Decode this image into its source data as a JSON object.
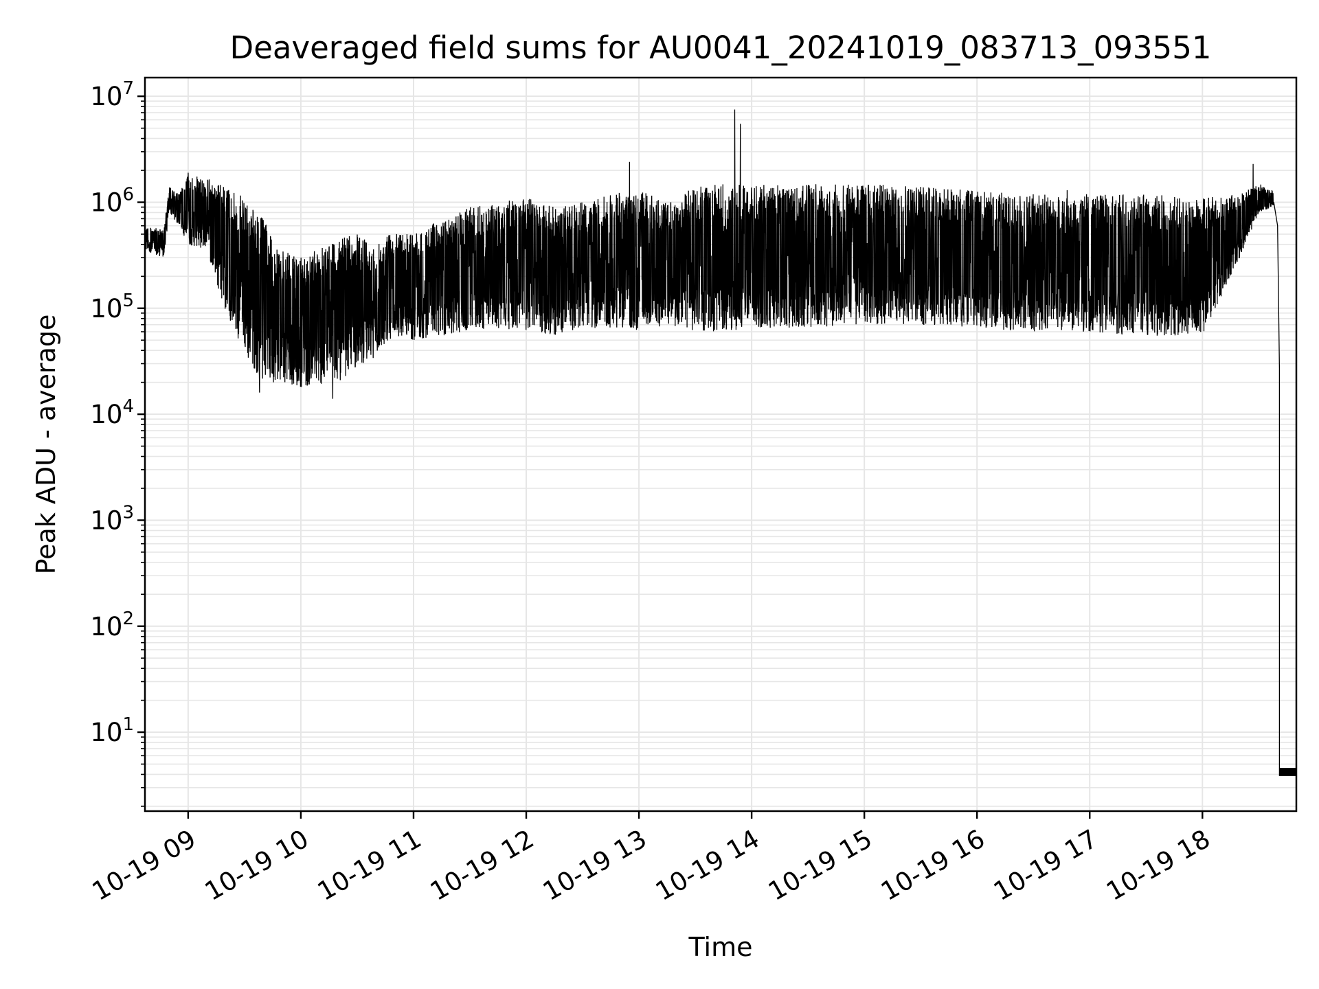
{
  "chart_data": {
    "type": "line",
    "title": "Deaveraged field sums for AU0041_20241019_083713_093551",
    "xlabel": "Time",
    "ylabel": "Peak ADU - average",
    "yscale": "log",
    "ylim": [
      1.8,
      15000000
    ],
    "xlim": [
      "2024-10-19 08:37",
      "2024-10-19 18:50"
    ],
    "grid": true,
    "line_color": "#000000",
    "grid_color": "#e6e6e6",
    "x_ticks": [
      {
        "t": "2024-10-19 09:00",
        "label": "10-19 09"
      },
      {
        "t": "2024-10-19 10:00",
        "label": "10-19 10"
      },
      {
        "t": "2024-10-19 11:00",
        "label": "10-19 11"
      },
      {
        "t": "2024-10-19 12:00",
        "label": "10-19 12"
      },
      {
        "t": "2024-10-19 13:00",
        "label": "10-19 13"
      },
      {
        "t": "2024-10-19 14:00",
        "label": "10-19 14"
      },
      {
        "t": "2024-10-19 15:00",
        "label": "10-19 15"
      },
      {
        "t": "2024-10-19 16:00",
        "label": "10-19 16"
      },
      {
        "t": "2024-10-19 17:00",
        "label": "10-19 17"
      },
      {
        "t": "2024-10-19 18:00",
        "label": "10-19 18"
      }
    ],
    "y_ticks": [
      {
        "value": 10,
        "base": "10",
        "exp": "1"
      },
      {
        "value": 100,
        "base": "10",
        "exp": "2"
      },
      {
        "value": 1000,
        "base": "10",
        "exp": "3"
      },
      {
        "value": 10000,
        "base": "10",
        "exp": "4"
      },
      {
        "value": 100000,
        "base": "10",
        "exp": "5"
      },
      {
        "value": 1000000,
        "base": "10",
        "exp": "6"
      },
      {
        "value": 10000000,
        "base": "10",
        "exp": "7"
      }
    ],
    "envelope": [
      {
        "t": "2024-10-19 08:37",
        "low": 350000,
        "high": 600000
      },
      {
        "t": "2024-10-19 08:47",
        "low": 300000,
        "high": 550000
      },
      {
        "t": "2024-10-19 08:50",
        "low": 800000,
        "high": 1400000
      },
      {
        "t": "2024-10-19 08:55",
        "low": 600000,
        "high": 1200000
      },
      {
        "t": "2024-10-19 09:00",
        "low": 400000,
        "high": 1800000
      },
      {
        "t": "2024-10-19 09:10",
        "low": 350000,
        "high": 1700000
      },
      {
        "t": "2024-10-19 09:20",
        "low": 90000,
        "high": 1400000
      },
      {
        "t": "2024-10-19 09:30",
        "low": 35000,
        "high": 1100000
      },
      {
        "t": "2024-10-19 09:40",
        "low": 20000,
        "high": 700000
      },
      {
        "t": "2024-10-19 09:50",
        "low": 20000,
        "high": 350000
      },
      {
        "t": "2024-10-19 10:00",
        "low": 18000,
        "high": 300000
      },
      {
        "t": "2024-10-19 10:10",
        "low": 19000,
        "high": 400000
      },
      {
        "t": "2024-10-19 10:20",
        "low": 20000,
        "high": 450000
      },
      {
        "t": "2024-10-19 10:30",
        "low": 28000,
        "high": 500000
      },
      {
        "t": "2024-10-19 10:40",
        "low": 35000,
        "high": 400000
      },
      {
        "t": "2024-10-19 10:50",
        "low": 55000,
        "high": 600000
      },
      {
        "t": "2024-10-19 11:00",
        "low": 50000,
        "high": 500000
      },
      {
        "t": "2024-10-19 11:15",
        "low": 55000,
        "high": 700000
      },
      {
        "t": "2024-10-19 11:30",
        "low": 60000,
        "high": 900000
      },
      {
        "t": "2024-10-19 11:45",
        "low": 65000,
        "high": 1000000
      },
      {
        "t": "2024-10-19 12:00",
        "low": 60000,
        "high": 1100000
      },
      {
        "t": "2024-10-19 12:15",
        "low": 55000,
        "high": 900000
      },
      {
        "t": "2024-10-19 12:30",
        "low": 65000,
        "high": 1000000
      },
      {
        "t": "2024-10-19 12:45",
        "low": 65000,
        "high": 1200000
      },
      {
        "t": "2024-10-19 13:00",
        "low": 60000,
        "high": 1300000
      },
      {
        "t": "2024-10-19 13:15",
        "low": 70000,
        "high": 1000000
      },
      {
        "t": "2024-10-19 13:30",
        "low": 60000,
        "high": 1400000
      },
      {
        "t": "2024-10-19 13:45",
        "low": 60000,
        "high": 1500000
      },
      {
        "t": "2024-10-19 14:00",
        "low": 65000,
        "high": 1500000
      },
      {
        "t": "2024-10-19 14:30",
        "low": 65000,
        "high": 1500000
      },
      {
        "t": "2024-10-19 15:00",
        "low": 70000,
        "high": 1500000
      },
      {
        "t": "2024-10-19 15:30",
        "low": 70000,
        "high": 1400000
      },
      {
        "t": "2024-10-19 16:00",
        "low": 65000,
        "high": 1300000
      },
      {
        "t": "2024-10-19 16:30",
        "low": 60000,
        "high": 1200000
      },
      {
        "t": "2024-10-19 17:00",
        "low": 60000,
        "high": 1200000
      },
      {
        "t": "2024-10-19 17:30",
        "low": 55000,
        "high": 1200000
      },
      {
        "t": "2024-10-19 18:00",
        "low": 55000,
        "high": 1100000
      },
      {
        "t": "2024-10-19 18:20",
        "low": 300000,
        "high": 1200000
      },
      {
        "t": "2024-10-19 18:30",
        "low": 800000,
        "high": 1500000
      },
      {
        "t": "2024-10-19 18:38",
        "low": 900000,
        "high": 1300000
      }
    ],
    "spikes": [
      {
        "t": "2024-10-19 09:00",
        "value": 1900000
      },
      {
        "t": "2024-10-19 12:55",
        "value": 2400000
      },
      {
        "t": "2024-10-19 13:51",
        "value": 7500000
      },
      {
        "t": "2024-10-19 13:54",
        "value": 5500000
      },
      {
        "t": "2024-10-19 18:27",
        "value": 2300000
      },
      {
        "t": "2024-10-19 10:17",
        "value": 14000
      },
      {
        "t": "2024-10-19 09:38",
        "value": 16000
      },
      {
        "t": "2024-10-19 16:48",
        "value": 1300000
      }
    ],
    "dropoff": [
      {
        "t": "2024-10-19 18:38",
        "value": 1000000
      },
      {
        "t": "2024-10-19 18:40",
        "value": 600000
      },
      {
        "t": "2024-10-19 18:41",
        "value": 27000
      },
      {
        "t": "2024-10-19 18:41",
        "value": 4.5
      },
      {
        "t": "2024-10-19 18:42",
        "value": 3.9
      },
      {
        "t": "2024-10-19 18:50",
        "value": 4.0
      }
    ]
  }
}
